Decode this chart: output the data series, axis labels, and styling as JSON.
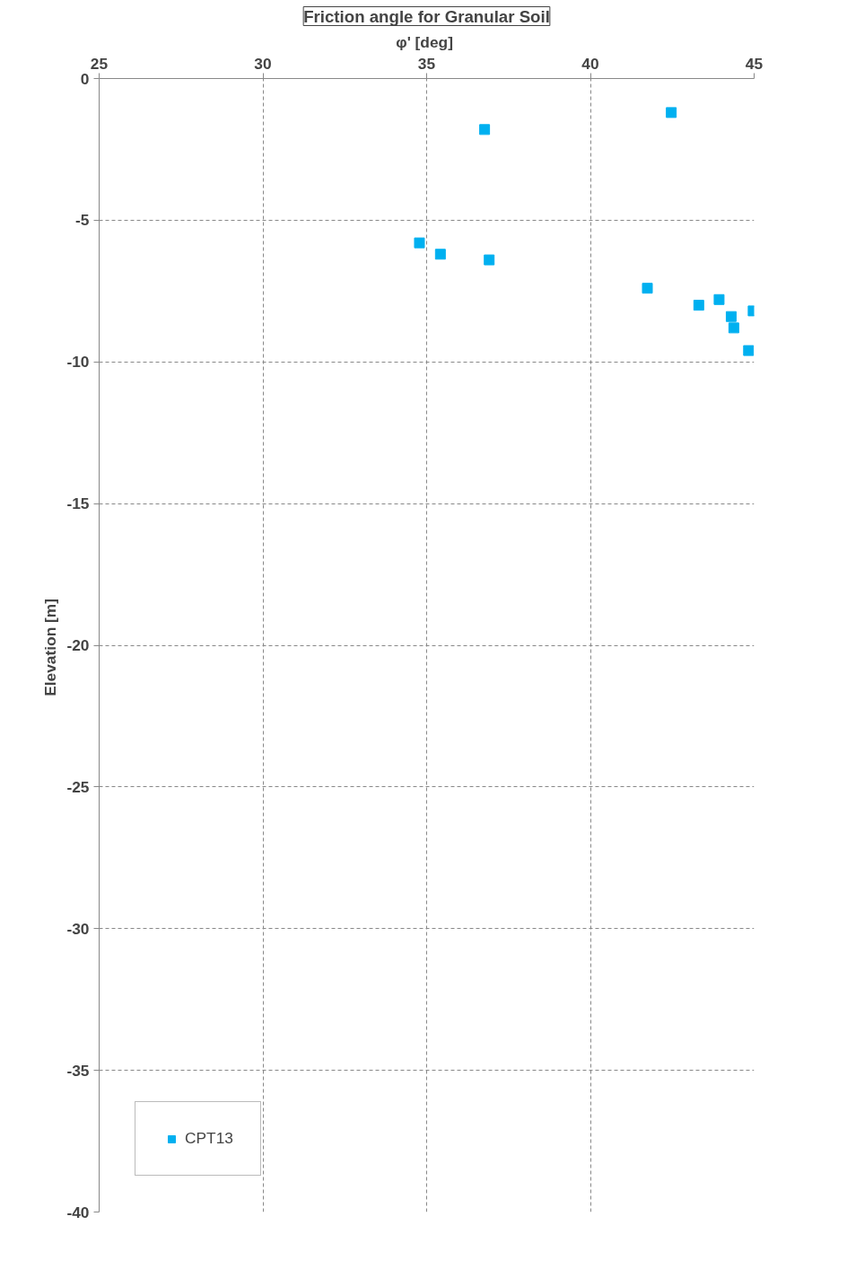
{
  "chart_data": {
    "type": "scatter",
    "title": "Friction angle for Granular Soil",
    "xlabel": "φ'  [deg]",
    "ylabel": "Elevation  [m]",
    "xlim": [
      25,
      45
    ],
    "xticks": [
      25,
      30,
      35,
      40,
      45
    ],
    "ylim": [
      -40,
      0
    ],
    "yticks": [
      0,
      -5,
      -10,
      -15,
      -20,
      -25,
      -30,
      -35,
      -40
    ],
    "grid": true,
    "legend": "bottom left",
    "marker": "square",
    "series": [
      {
        "name": "CPT13",
        "color": "#00b0f0",
        "x": [
          36.77,
          42.47,
          34.78,
          35.42,
          36.91,
          41.74,
          43.31,
          43.93,
          44.97,
          44.3,
          44.38,
          44.83
        ],
        "values": [
          -1.8,
          -1.2,
          -5.8,
          -6.2,
          -6.4,
          -7.4,
          -8.0,
          -7.8,
          -8.2,
          -8.4,
          -8.8,
          -9.6
        ]
      }
    ]
  }
}
